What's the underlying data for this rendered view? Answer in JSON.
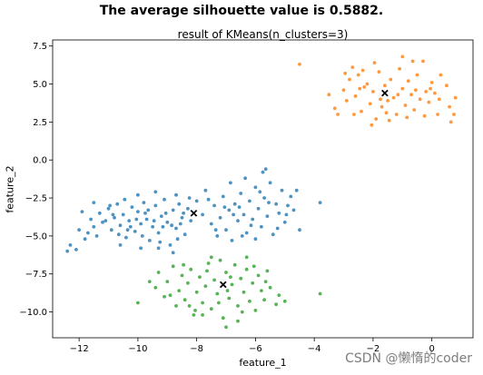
{
  "figure": {
    "suptitle": "The average silhouette value is 0.5882.",
    "watermark": "CSDN @懒惰的coder"
  },
  "chart_data": {
    "type": "scatter",
    "title": "result of KMeans(n_clusters=3)",
    "xlabel": "feature_1",
    "ylabel": "feature_2",
    "xlim": [
      -12.9,
      1.4
    ],
    "ylim": [
      -11.7,
      7.9
    ],
    "xticks": [
      -12,
      -10,
      -8,
      -6,
      -4,
      -2,
      0
    ],
    "yticks": [
      -10.0,
      -7.5,
      -5.0,
      -2.5,
      0.0,
      2.5,
      5.0,
      7.5
    ],
    "xtick_labels": [
      "−12",
      "−10",
      "−8",
      "−6",
      "−4",
      "−2",
      "0"
    ],
    "ytick_labels": [
      "−10.0",
      "−7.5",
      "−5.0",
      "−2.5",
      "0.0",
      "2.5",
      "5.0",
      "7.5"
    ],
    "grid": false,
    "colors": {
      "cluster_0": "#1f77b4",
      "cluster_1": "#ff7f0e",
      "cluster_2": "#2ca02c",
      "centroid": "#000000"
    },
    "centroids": [
      {
        "x": -8.1,
        "y": -3.5
      },
      {
        "x": -1.6,
        "y": 4.4
      },
      {
        "x": -7.1,
        "y": -8.2
      }
    ],
    "series": [
      {
        "color": "#1f77b4",
        "points": [
          [
            -12.4,
            -6.0
          ],
          [
            -12.3,
            -5.6
          ],
          [
            -12.1,
            -5.9
          ],
          [
            -11.8,
            -5.2
          ],
          [
            -11.7,
            -4.8
          ],
          [
            -11.5,
            -4.4
          ],
          [
            -11.4,
            -5.0
          ],
          [
            -11.6,
            -3.9
          ],
          [
            -11.3,
            -3.5
          ],
          [
            -11.2,
            -4.1
          ],
          [
            -11.0,
            -3.2
          ],
          [
            -10.9,
            -4.6
          ],
          [
            -10.8,
            -3.8
          ],
          [
            -10.7,
            -2.9
          ],
          [
            -10.6,
            -4.3
          ],
          [
            -10.5,
            -3.6
          ],
          [
            -10.4,
            -5.1
          ],
          [
            -10.3,
            -4.0
          ],
          [
            -10.2,
            -3.1
          ],
          [
            -10.1,
            -4.7
          ],
          [
            -10.0,
            -3.4
          ],
          [
            -9.9,
            -4.2
          ],
          [
            -9.8,
            -2.8
          ],
          [
            -9.7,
            -3.9
          ],
          [
            -9.6,
            -5.3
          ],
          [
            -9.5,
            -4.4
          ],
          [
            -9.4,
            -3.0
          ],
          [
            -9.3,
            -4.8
          ],
          [
            -9.2,
            -3.7
          ],
          [
            -9.1,
            -2.6
          ],
          [
            -9.0,
            -4.1
          ],
          [
            -8.9,
            -5.6
          ],
          [
            -8.8,
            -3.3
          ],
          [
            -8.7,
            -4.5
          ],
          [
            -8.6,
            -2.9
          ],
          [
            -8.5,
            -3.8
          ],
          [
            -8.4,
            -4.9
          ],
          [
            -8.3,
            -3.2
          ],
          [
            -8.2,
            -4.0
          ],
          [
            -8.0,
            -2.7
          ],
          [
            -11.1,
            -4.0
          ],
          [
            -10.85,
            -3.6
          ],
          [
            -10.65,
            -4.9
          ],
          [
            -10.45,
            -2.6
          ],
          [
            -10.25,
            -4.4
          ],
          [
            -10.05,
            -3.9
          ],
          [
            -9.85,
            -5.0
          ],
          [
            -9.65,
            -3.3
          ],
          [
            -9.45,
            -4.0
          ],
          [
            -9.25,
            -5.4
          ],
          [
            -9.05,
            -3.5
          ],
          [
            -8.85,
            -4.3
          ],
          [
            -8.65,
            -5.2
          ],
          [
            -8.45,
            -3.5
          ],
          [
            -8.25,
            -2.5
          ],
          [
            -10.95,
            -3.0
          ],
          [
            -10.35,
            -4.6
          ],
          [
            -9.75,
            -3.5
          ],
          [
            -9.15,
            -4.4
          ],
          [
            -8.55,
            -4.2
          ],
          [
            -11.9,
            -3.4
          ],
          [
            -11.5,
            -2.8
          ],
          [
            -10.0,
            -2.3
          ],
          [
            -9.4,
            -2.1
          ],
          [
            -9.3,
            -5.8
          ],
          [
            -8.8,
            -6.1
          ],
          [
            -12.0,
            -4.6
          ],
          [
            -10.6,
            -5.6
          ],
          [
            -9.9,
            -5.8
          ],
          [
            -8.7,
            -2.3
          ],
          [
            -7.8,
            -3.6
          ],
          [
            -7.6,
            -2.6
          ],
          [
            -7.5,
            -4.2
          ],
          [
            -7.4,
            -3.0
          ],
          [
            -7.3,
            -5.0
          ],
          [
            -7.2,
            -3.8
          ],
          [
            -7.1,
            -2.4
          ],
          [
            -7.0,
            -4.6
          ],
          [
            -6.9,
            -3.3
          ],
          [
            -6.8,
            -5.3
          ],
          [
            -6.7,
            -2.9
          ],
          [
            -6.6,
            -4.0
          ],
          [
            -6.5,
            -2.2
          ],
          [
            -6.4,
            -3.6
          ],
          [
            -6.3,
            -4.8
          ],
          [
            -6.2,
            -2.7
          ],
          [
            -6.1,
            -3.9
          ],
          [
            -6.0,
            -1.8
          ],
          [
            -5.9,
            -3.2
          ],
          [
            -5.8,
            -4.4
          ],
          [
            -5.7,
            -2.5
          ],
          [
            -5.6,
            -3.7
          ],
          [
            -5.5,
            -1.5
          ],
          [
            -5.4,
            -4.9
          ],
          [
            -5.3,
            -2.9
          ],
          [
            -5.2,
            -3.5
          ],
          [
            -5.1,
            -2.0
          ],
          [
            -5.0,
            -4.1
          ],
          [
            -4.9,
            -3.0
          ],
          [
            -4.8,
            -2.4
          ],
          [
            -7.7,
            -2.0
          ],
          [
            -7.35,
            -4.6
          ],
          [
            -7.05,
            -3.1
          ],
          [
            -6.75,
            -3.6
          ],
          [
            -6.45,
            -5.0
          ],
          [
            -6.15,
            -4.3
          ],
          [
            -5.85,
            -2.1
          ],
          [
            -5.55,
            -2.8
          ],
          [
            -5.25,
            -4.5
          ],
          [
            -4.95,
            -3.6
          ],
          [
            -6.35,
            -1.2
          ],
          [
            -5.75,
            -0.8
          ],
          [
            -5.65,
            -0.6
          ],
          [
            -6.85,
            -1.5
          ],
          [
            -4.6,
            -2.0
          ],
          [
            -4.7,
            -3.3
          ],
          [
            -4.5,
            -4.6
          ],
          [
            -3.8,
            -2.8
          ],
          [
            -6.0,
            -5.2
          ],
          [
            -6.55,
            -3.1
          ]
        ]
      },
      {
        "color": "#ff7f0e",
        "points": [
          [
            -4.5,
            6.3
          ],
          [
            -3.5,
            4.3
          ],
          [
            -3.3,
            3.4
          ],
          [
            -3.0,
            4.6
          ],
          [
            -2.8,
            5.3
          ],
          [
            -2.9,
            3.9
          ],
          [
            -2.7,
            6.1
          ],
          [
            -2.6,
            4.2
          ],
          [
            -2.5,
            5.6
          ],
          [
            -2.4,
            3.2
          ],
          [
            -2.3,
            4.8
          ],
          [
            -2.2,
            5.0
          ],
          [
            -2.1,
            3.7
          ],
          [
            -2.0,
            4.5
          ],
          [
            -1.9,
            2.7
          ],
          [
            -1.8,
            5.8
          ],
          [
            -1.7,
            3.5
          ],
          [
            -1.6,
            4.9
          ],
          [
            -1.5,
            3.9
          ],
          [
            -1.4,
            5.3
          ],
          [
            -1.3,
            4.1
          ],
          [
            -1.2,
            3.0
          ],
          [
            -1.1,
            6.0
          ],
          [
            -1.0,
            4.7
          ],
          [
            -0.9,
            3.6
          ],
          [
            -0.8,
            5.2
          ],
          [
            -0.7,
            4.3
          ],
          [
            -0.6,
            3.3
          ],
          [
            -0.5,
            5.6
          ],
          [
            -0.4,
            4.0
          ],
          [
            -0.3,
            6.5
          ],
          [
            -0.2,
            4.5
          ],
          [
            -0.1,
            3.8
          ],
          [
            0.0,
            5.1
          ],
          [
            0.1,
            4.4
          ],
          [
            0.2,
            3.0
          ],
          [
            0.3,
            5.6
          ],
          [
            0.5,
            4.9
          ],
          [
            0.6,
            3.5
          ],
          [
            0.8,
            4.1
          ],
          [
            -3.2,
            3.0
          ],
          [
            -2.95,
            5.7
          ],
          [
            -2.65,
            3.0
          ],
          [
            -2.35,
            5.9
          ],
          [
            -2.05,
            2.3
          ],
          [
            -1.75,
            4.0
          ],
          [
            -1.45,
            2.6
          ],
          [
            -1.15,
            4.3
          ],
          [
            -0.85,
            2.8
          ],
          [
            -0.55,
            4.6
          ],
          [
            -0.25,
            2.9
          ],
          [
            0.25,
            4.0
          ],
          [
            0.65,
            2.5
          ],
          [
            0.75,
            3.0
          ],
          [
            -1.0,
            6.8
          ],
          [
            -0.65,
            6.5
          ],
          [
            -1.95,
            6.4
          ],
          [
            -1.55,
            3.1
          ],
          [
            -2.45,
            4.7
          ],
          [
            -0.05,
            4.7
          ]
        ]
      },
      {
        "color": "#2ca02c",
        "points": [
          [
            -10.0,
            -9.4
          ],
          [
            -9.4,
            -8.4
          ],
          [
            -9.3,
            -7.4
          ],
          [
            -9.1,
            -9.0
          ],
          [
            -9.0,
            -8.0
          ],
          [
            -8.8,
            -7.0
          ],
          [
            -8.7,
            -9.6
          ],
          [
            -8.6,
            -8.6
          ],
          [
            -8.5,
            -7.6
          ],
          [
            -8.4,
            -9.2
          ],
          [
            -8.3,
            -8.1
          ],
          [
            -8.2,
            -7.2
          ],
          [
            -8.1,
            -10.2
          ],
          [
            -8.0,
            -8.7
          ],
          [
            -7.9,
            -7.7
          ],
          [
            -7.8,
            -9.4
          ],
          [
            -7.7,
            -8.3
          ],
          [
            -7.6,
            -6.8
          ],
          [
            -7.5,
            -9.8
          ],
          [
            -7.4,
            -7.9
          ],
          [
            -7.3,
            -8.8
          ],
          [
            -7.2,
            -6.6
          ],
          [
            -7.1,
            -10.4
          ],
          [
            -7.0,
            -7.4
          ],
          [
            -6.9,
            -9.1
          ],
          [
            -6.8,
            -8.2
          ],
          [
            -6.7,
            -6.9
          ],
          [
            -6.6,
            -9.6
          ],
          [
            -6.5,
            -7.8
          ],
          [
            -6.4,
            -8.7
          ],
          [
            -6.3,
            -7.2
          ],
          [
            -6.2,
            -9.3
          ],
          [
            -6.1,
            -8.1
          ],
          [
            -6.0,
            -9.9
          ],
          [
            -5.9,
            -7.6
          ],
          [
            -5.8,
            -8.6
          ],
          [
            -5.7,
            -9.2
          ],
          [
            -5.6,
            -7.3
          ],
          [
            -5.5,
            -8.4
          ],
          [
            -5.3,
            -9.5
          ],
          [
            -8.9,
            -8.9
          ],
          [
            -8.45,
            -6.9
          ],
          [
            -8.05,
            -9.9
          ],
          [
            -7.65,
            -7.3
          ],
          [
            -7.25,
            -9.4
          ],
          [
            -6.85,
            -7.7
          ],
          [
            -6.45,
            -10.0
          ],
          [
            -6.05,
            -7.0
          ],
          [
            -5.65,
            -8.0
          ],
          [
            -5.2,
            -8.9
          ],
          [
            -7.0,
            -11.0
          ],
          [
            -6.6,
            -10.6
          ],
          [
            -7.8,
            -10.2
          ],
          [
            -5.0,
            -9.3
          ],
          [
            -3.8,
            -8.8
          ],
          [
            -7.5,
            -6.4
          ],
          [
            -6.3,
            -6.4
          ],
          [
            -9.6,
            -8.0
          ],
          [
            -8.25,
            -9.6
          ],
          [
            -6.95,
            -8.6
          ]
        ]
      }
    ]
  }
}
